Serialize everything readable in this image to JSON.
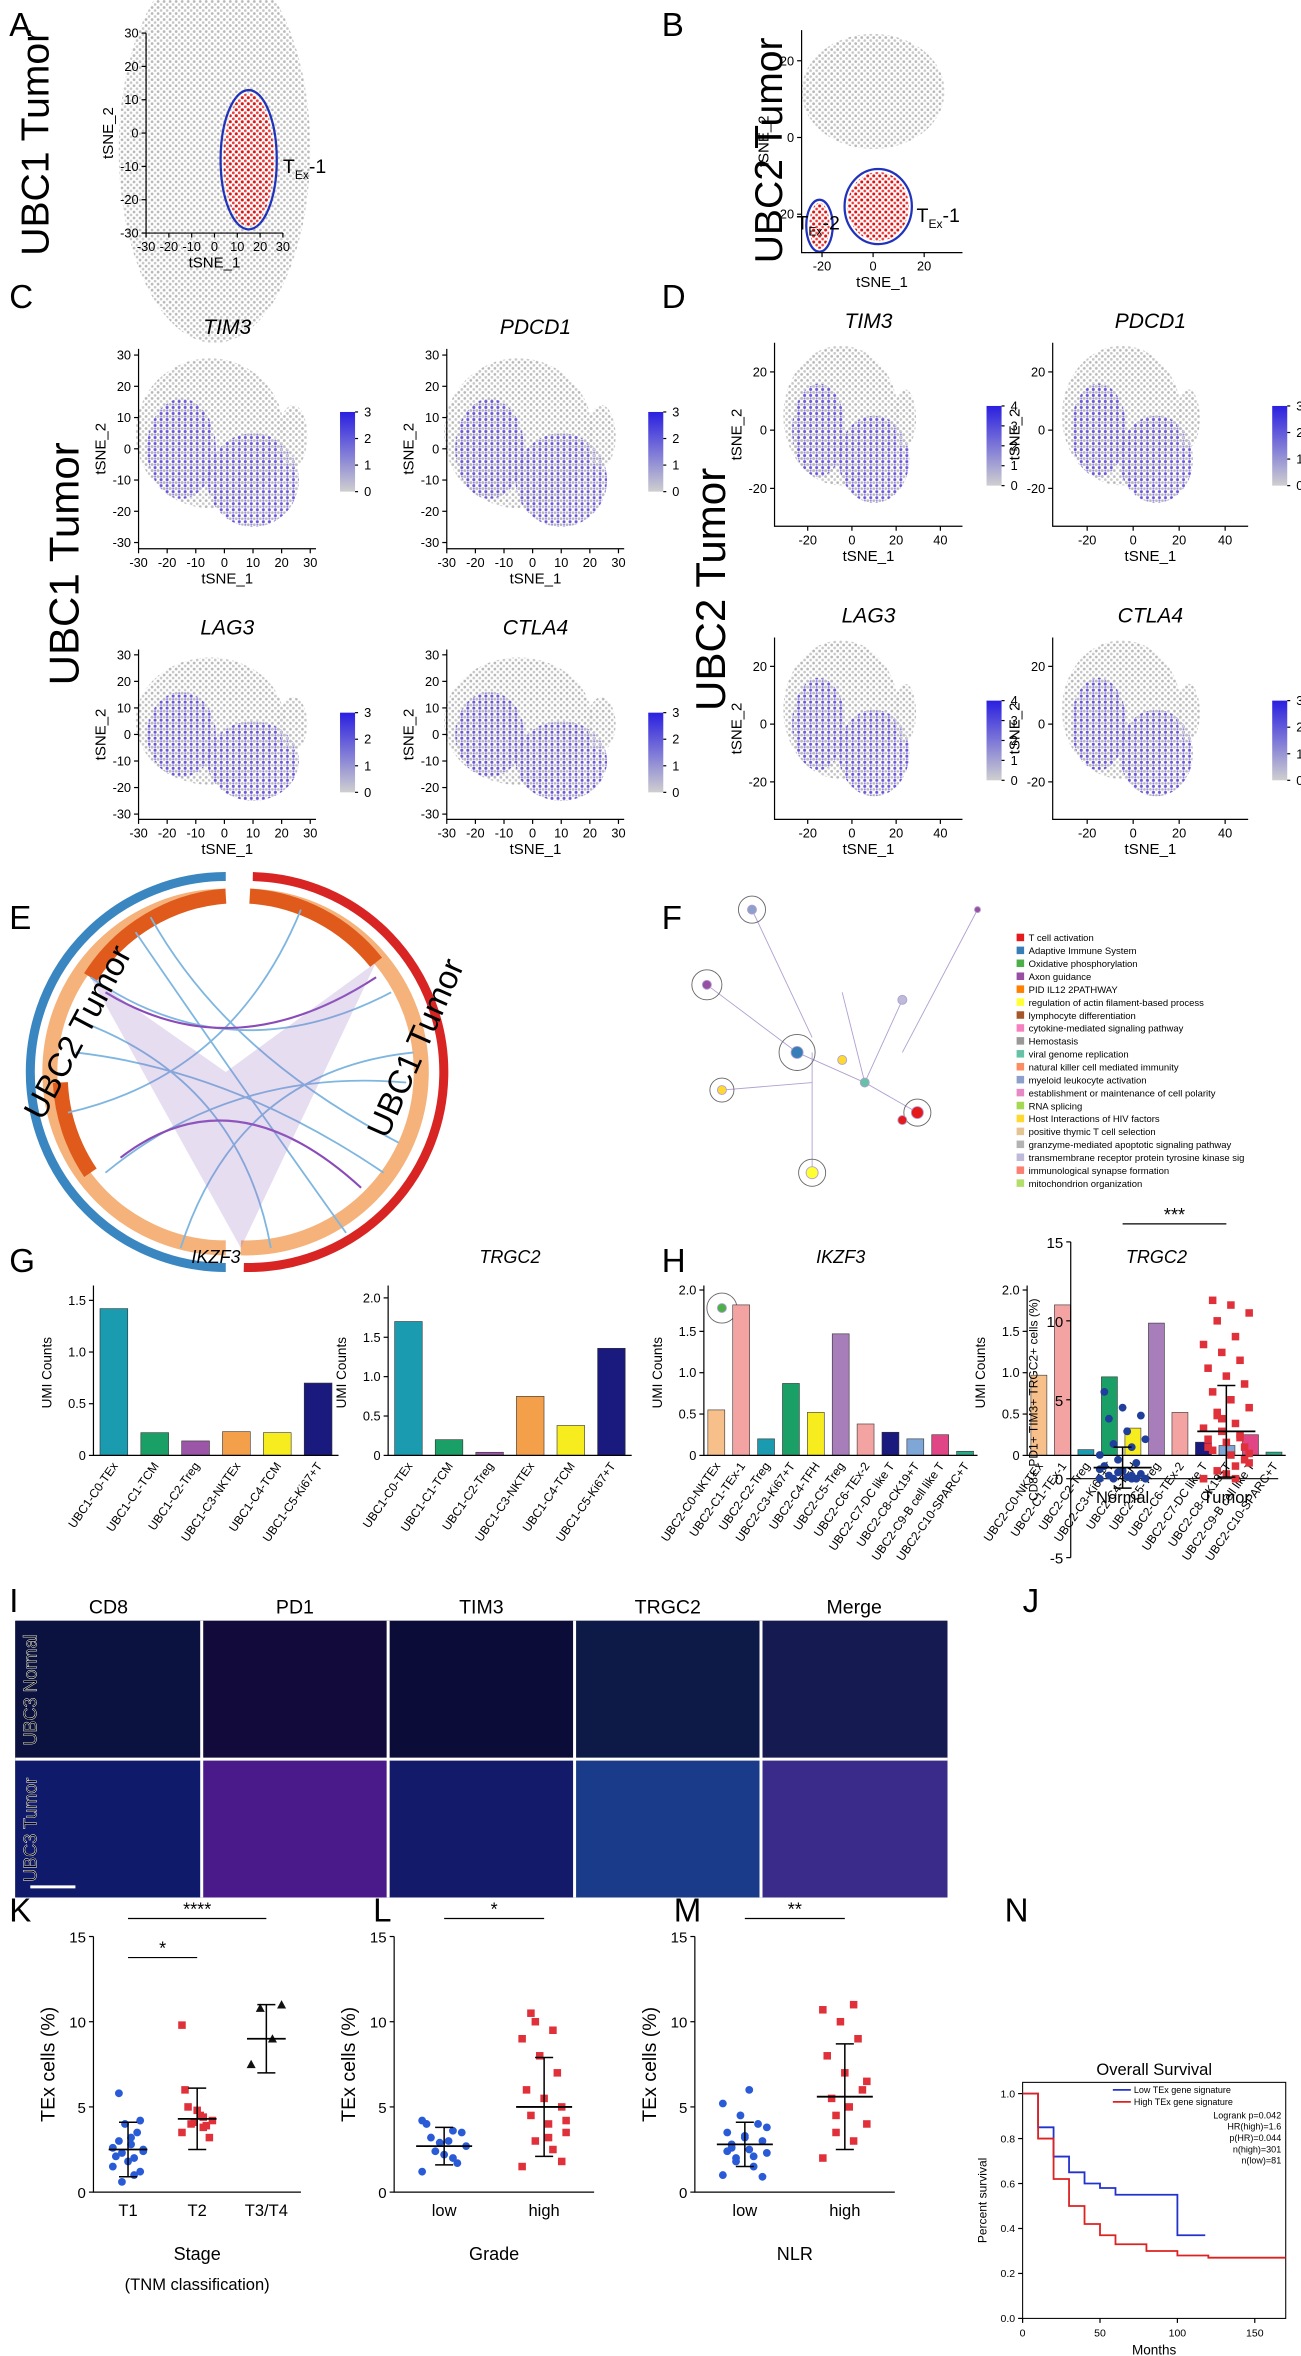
{
  "panel_letters": [
    "A",
    "B",
    "C",
    "D",
    "E",
    "F",
    "G",
    "H",
    "I",
    "J",
    "K",
    "L",
    "M",
    "N"
  ],
  "row_labels": [
    "UBC1 Tumor",
    "UBC2 Tumor",
    "UBC1 Tumor",
    "UBC2 Tumor",
    "UBC2 Tumor",
    "UBC1 Tumor"
  ],
  "tsne": [
    {
      "xlabel": "tSNE_1",
      "ylabel": "tSNE_2",
      "xlim": [
        -30,
        30
      ],
      "ylim": [
        -30,
        30
      ],
      "xticks": [
        -30,
        -20,
        -10,
        0,
        10,
        20,
        30
      ],
      "yticks": [
        -30,
        -20,
        -10,
        0,
        10,
        20,
        30
      ],
      "annotations": [
        {
          "main": "T",
          "sub": "Ex",
          "rest": "-1"
        }
      ]
    },
    {
      "xlabel": "tSNE_1",
      "ylabel": "tSNE_2",
      "xlim": [
        -28,
        35
      ],
      "ylim": [
        -30,
        28
      ],
      "xticks": [
        -20,
        0,
        20
      ],
      "yticks": [
        -20,
        0,
        20
      ],
      "annotations": [
        {
          "main": "T",
          "sub": "Ex",
          "rest": "-2"
        },
        {
          "main": "T",
          "sub": "Ex",
          "rest": "-1"
        }
      ]
    },
    {
      "title": "TIM3",
      "xlabel": "tSNE_1",
      "ylabel": "tSNE_2",
      "xlim": [
        -30,
        32
      ],
      "ylim": [
        -32,
        32
      ],
      "xticks": [
        -30,
        -20,
        -10,
        0,
        10,
        20,
        30
      ],
      "yticks": [
        -30,
        -20,
        -10,
        0,
        10,
        20,
        30
      ],
      "colorbar_ticks": [
        0,
        1,
        2,
        3
      ]
    },
    {
      "title": "PDCD1",
      "xlabel": "tSNE_1",
      "ylabel": "tSNE_2",
      "xlim": [
        -30,
        32
      ],
      "ylim": [
        -32,
        32
      ],
      "xticks": [
        -30,
        -20,
        -10,
        0,
        10,
        20,
        30
      ],
      "yticks": [
        -30,
        -20,
        -10,
        0,
        10,
        20,
        30
      ],
      "colorbar_ticks": [
        0,
        1,
        2,
        3
      ]
    },
    {
      "title": "LAG3",
      "xlabel": "tSNE_1",
      "ylabel": "tSNE_2",
      "xlim": [
        -30,
        32
      ],
      "ylim": [
        -32,
        32
      ],
      "xticks": [
        -30,
        -20,
        -10,
        0,
        10,
        20,
        30
      ],
      "yticks": [
        -30,
        -20,
        -10,
        0,
        10,
        20,
        30
      ],
      "colorbar_ticks": [
        0,
        1,
        2,
        3
      ]
    },
    {
      "title": "CTLA4",
      "xlabel": "tSNE_1",
      "ylabel": "tSNE_2",
      "xlim": [
        -30,
        32
      ],
      "ylim": [
        -32,
        32
      ],
      "xticks": [
        -30,
        -20,
        -10,
        0,
        10,
        20,
        30
      ],
      "yticks": [
        -30,
        -20,
        -10,
        0,
        10,
        20,
        30
      ],
      "colorbar_ticks": [
        0,
        1,
        2,
        3
      ]
    },
    {
      "title": "TIM3",
      "xlabel": "tSNE_1",
      "ylabel": "tSNE_2",
      "xlim": [
        -35,
        50
      ],
      "ylim": [
        -33,
        30
      ],
      "xticks": [
        -20,
        0,
        20,
        40
      ],
      "yticks": [
        -20,
        0,
        20
      ],
      "colorbar_ticks": [
        0,
        1,
        2,
        3,
        4
      ]
    },
    {
      "title": "PDCD1",
      "xlabel": "tSNE_1",
      "ylabel": "tSNE_2",
      "xlim": [
        -35,
        50
      ],
      "ylim": [
        -33,
        30
      ],
      "xticks": [
        -20,
        0,
        20,
        40
      ],
      "yticks": [
        -20,
        0,
        20
      ],
      "colorbar_ticks": [
        0,
        1,
        2,
        3
      ]
    },
    {
      "title": "LAG3",
      "xlabel": "tSNE_1",
      "ylabel": "tSNE_2",
      "xlim": [
        -35,
        50
      ],
      "ylim": [
        -33,
        30
      ],
      "xticks": [
        -20,
        0,
        20,
        40
      ],
      "yticks": [
        -20,
        0,
        20
      ],
      "colorbar_ticks": [
        0,
        1,
        2,
        3,
        4
      ]
    },
    {
      "title": "CTLA4",
      "xlabel": "tSNE_1",
      "ylabel": "tSNE_2",
      "xlim": [
        -35,
        50
      ],
      "ylim": [
        -33,
        30
      ],
      "xticks": [
        -20,
        0,
        20,
        40
      ],
      "yticks": [
        -20,
        0,
        20
      ],
      "colorbar_ticks": [
        0,
        1,
        2,
        3
      ]
    }
  ],
  "network_legend": [
    {
      "name": "T cell activation",
      "color": "#e41a1c"
    },
    {
      "name": "Adaptive Immune System",
      "color": "#377eb8"
    },
    {
      "name": "Oxidative phosphorylation",
      "color": "#4daf4a"
    },
    {
      "name": "Axon guidance",
      "color": "#984ea3"
    },
    {
      "name": "PID IL12 2PATHWAY",
      "color": "#ff7f00"
    },
    {
      "name": "regulation of actin filament-based process",
      "color": "#ffff33"
    },
    {
      "name": "lymphocyte differentiation",
      "color": "#a65628"
    },
    {
      "name": "cytokine-mediated signaling pathway",
      "color": "#f781bf"
    },
    {
      "name": "Hemostasis",
      "color": "#999999"
    },
    {
      "name": "viral genome replication",
      "color": "#66c2a5"
    },
    {
      "name": "natural killer cell mediated immunity",
      "color": "#fc8d62"
    },
    {
      "name": "myeloid leukocyte activation",
      "color": "#8da0cb"
    },
    {
      "name": "establishment or maintenance of cell polarity",
      "color": "#e78ac3"
    },
    {
      "name": "RNA splicing",
      "color": "#a6d854"
    },
    {
      "name": "Host Interactions of HIV factors",
      "color": "#ffd92f"
    },
    {
      "name": "positive thymic T cell selection",
      "color": "#e5c494"
    },
    {
      "name": "granzyme-mediated apoptotic signaling pathway",
      "color": "#b3b3b3"
    },
    {
      "name": "transmembrane receptor protein tyrosine kinase sig",
      "color": "#bebada"
    },
    {
      "name": "immunological synapse formation",
      "color": "#fb8072"
    },
    {
      "name": "mitochondrion organization",
      "color": "#b3de69"
    }
  ],
  "bar_charts": [
    {
      "title": "IKZF3",
      "ylabel": "UMI Counts",
      "ylim": [
        0,
        1.6
      ],
      "yticks": [
        0,
        0.5,
        {
          "value": 1,
          "label": "1.0"
        },
        1.5
      ],
      "categories": [
        "UBC1-C0-TEx",
        "UBC1-C1-TCM",
        "UBC1-C2-Treg",
        "UBC1-C3-NKTEx",
        "UBC1-C4-TCM",
        "UBC1-C5-Ki67+T"
      ],
      "values": [
        1.42,
        0.22,
        0.14,
        0.23,
        0.22,
        0.7
      ],
      "colors": [
        "#1a9bb0",
        "#1aa067",
        "#9b56a8",
        "#f4a04b",
        "#f7ec1e",
        "#1a1a7e"
      ]
    },
    {
      "title": "TRGC2",
      "ylabel": "UMI Counts",
      "ylim": [
        0,
        2.1
      ],
      "yticks": [
        0,
        0.5,
        {
          "value": 1,
          "label": "1.0"
        },
        1.5,
        {
          "value": 2,
          "label": "2.0"
        }
      ],
      "categories": [
        "UBC1-C0-TEx",
        "UBC1-C1-TCM",
        "UBC1-C2-Treg",
        "UBC1-C3-NKTEx",
        "UBC1-C4-TCM",
        "UBC1-C5-Ki67+T"
      ],
      "values": [
        1.7,
        0.2,
        0.04,
        0.75,
        0.38,
        1.36
      ],
      "colors": [
        "#1a9bb0",
        "#1aa067",
        "#9b56a8",
        "#f4a04b",
        "#f7ec1e",
        "#1a1a7e"
      ]
    },
    {
      "title": "IKZF3",
      "ylabel": "UMI Counts",
      "ylim": [
        0,
        2
      ],
      "yticks": [
        0,
        0.5,
        {
          "value": 1,
          "label": "1.0"
        },
        1.5,
        {
          "value": 2,
          "label": "2.0"
        }
      ],
      "categories": [
        "UBC2-C0-NKTEx",
        "UBC2-C1-TEx-1",
        "UBC2-C2-Treg",
        "UBC2-C3-Ki67+T",
        "UBC2-C4-TFH",
        "UBC2-C5-Treg",
        "UBC2-C6-TEx-2",
        "UBC2-C7-DC like T",
        "UBC2-C8-CK19+T",
        "UBC2-C9-B cell like T",
        "UBC2-C10-SPARC+T"
      ],
      "values": [
        0.55,
        1.82,
        0.2,
        0.87,
        0.52,
        1.47,
        0.38,
        0.28,
        0.2,
        0.25,
        0.05
      ],
      "colors": [
        "#f7c08a",
        "#f4a3a3",
        "#1a9bb0",
        "#1aa067",
        "#f7ec1e",
        "#a77dba",
        "#f4a3a3",
        "#1a1a7e",
        "#7ea6d6",
        "#e04585",
        "#2aaa8a"
      ]
    },
    {
      "title": "TRGC2",
      "ylabel": "UMI Counts",
      "ylim": [
        0,
        2
      ],
      "yticks": [
        0,
        0.5,
        {
          "value": 1,
          "label": "1.0"
        },
        1.5,
        {
          "value": 2,
          "label": "2.0"
        }
      ],
      "categories": [
        "UBC2-C0-NKTEx",
        "UBC2-C1-TEx-1",
        "UBC2-C2-Treg",
        "UBC2-C3-Ki67+T",
        "UBC2-C4-TFH",
        "UBC2-C5-Treg",
        "UBC2-C6-TEx-2",
        "UBC2-C7-DC like T",
        "UBC2-C8-CK19+T",
        "UBC2-C9-B cell like T",
        "UBC2-C10-SPARC+T"
      ],
      "values": [
        0.97,
        1.82,
        0.07,
        0.95,
        0.33,
        1.6,
        0.52,
        0.16,
        0.12,
        0.25,
        0.04
      ],
      "colors": [
        "#f7c08a",
        "#f4a3a3",
        "#1a9bb0",
        "#1aa067",
        "#f7ec1e",
        "#a77dba",
        "#f4a3a3",
        "#1a1a7e",
        "#7ea6d6",
        "#e04585",
        "#2aaa8a"
      ]
    }
  ],
  "imaging": {
    "channels": [
      {
        "name": "CD8",
        "color": "#7ee03a"
      },
      {
        "name": "PD1",
        "color": "#c43ad0"
      },
      {
        "name": "TIM3",
        "color": "#e02a2a"
      },
      {
        "name": "TRGC2",
        "color": "#3ad6e0"
      },
      {
        "name": "Merge",
        "color": "#000000"
      }
    ],
    "rows": [
      "UBC3 Normal",
      "UBC3 Tumor"
    ]
  },
  "strip_charts": [
    {
      "ylabel": "CD8+ PD1+ TIM3+ TRGC2+ cells (%)",
      "ylim": [
        -5,
        15
      ],
      "yticks": [
        -5,
        0,
        5,
        10,
        15
      ],
      "categories": [
        "Normal",
        "Tumor"
      ],
      "colors": [
        "#1f3f9a",
        "#e0303a"
      ],
      "markers": [
        "circle",
        "square"
      ],
      "points": [
        [
          0,
          0,
          0,
          0,
          0.1,
          0.2,
          0.3,
          0.5,
          0.8,
          1,
          1.2,
          1.5,
          2,
          2.2,
          2.5,
          3,
          3.8,
          4,
          4.5,
          5.5,
          0,
          0.4,
          0.6,
          0.2
        ],
        [
          0,
          0,
          0.5,
          1,
          1.5,
          1.8,
          2,
          2.3,
          2.5,
          2.8,
          3,
          3.2,
          3.5,
          4,
          4.5,
          5,
          5.5,
          6,
          6.5,
          7,
          7.5,
          8,
          8.5,
          9,
          10,
          10.5,
          11,
          11.3,
          1.2,
          0.3,
          2,
          2.6,
          3.8,
          0,
          0.8,
          4.2,
          1.6
        ]
      ],
      "means": [
        0.7,
        3
      ],
      "sd": [
        1.3,
        2.9
      ],
      "significance": [
        {
          "label": "***",
          "between": [
            "Normal",
            "Tumor"
          ]
        }
      ]
    },
    {
      "ylabel": "TEx cells (%)",
      "xlabel": "Stage",
      "note": "(TNM classification)",
      "ylim": [
        0,
        15
      ],
      "yticks": [
        0,
        5,
        10,
        15
      ],
      "categories": [
        "T1",
        "T2",
        "T3/T4"
      ],
      "colors": [
        "#2a5bd7",
        "#e0303a",
        "#111111"
      ],
      "markers": [
        "circle",
        "square",
        "triangle"
      ],
      "points": [
        [
          1.5,
          2,
          2.3,
          2.5,
          2.8,
          3,
          1.2,
          1.8,
          2.1,
          3.5,
          4,
          2.6,
          1,
          0.6,
          2.4,
          3.2,
          5.8,
          4.2
        ],
        [
          3.5,
          3.8,
          4,
          4.2,
          4.5,
          5,
          3.2,
          4.8,
          6,
          3.9,
          4.1,
          9.8,
          4.4
        ],
        [
          7.5,
          9,
          10.8,
          11
        ]
      ],
      "means": [
        2.5,
        4.3,
        9
      ],
      "sd": [
        1.6,
        1.8,
        2
      ],
      "significance": [
        {
          "label": "*",
          "between": [
            "T1",
            "T2"
          ]
        },
        {
          "label": "****",
          "between": [
            "T1",
            "T3/T4"
          ]
        }
      ]
    },
    {
      "ylabel": "TEx cells (%)",
      "xlabel": "Grade",
      "ylim": [
        0,
        15
      ],
      "yticks": [
        0,
        5,
        10,
        15
      ],
      "categories": [
        "low",
        "high"
      ],
      "colors": [
        "#2a5bd7",
        "#e0303a"
      ],
      "markers": [
        "circle",
        "square"
      ],
      "points": [
        [
          1.2,
          2,
          2.4,
          2.7,
          3,
          3.2,
          3.5,
          2.2,
          4,
          1.7,
          2.9,
          4.2,
          3.6
        ],
        [
          1.5,
          2.5,
          3,
          3.5,
          4,
          4.5,
          5,
          5.5,
          6,
          7,
          8,
          9,
          9.5,
          10,
          4.2,
          3.2,
          10.5,
          1.8
        ]
      ],
      "means": [
        2.7,
        5
      ],
      "sd": [
        1.1,
        2.9
      ],
      "significance": [
        {
          "label": "*",
          "between": [
            "low",
            "high"
          ]
        }
      ]
    },
    {
      "ylabel": "TEx cells (%)",
      "xlabel": "NLR",
      "ylim": [
        0,
        15
      ],
      "yticks": [
        0,
        5,
        10,
        15
      ],
      "categories": [
        "low",
        "high"
      ],
      "colors": [
        "#2a5bd7",
        "#e0303a"
      ],
      "markers": [
        "circle",
        "square"
      ],
      "points": [
        [
          1,
          1.5,
          2,
          2.3,
          2.5,
          2.8,
          3,
          3.2,
          3.5,
          4,
          4.5,
          5.2,
          2.1,
          1.8,
          3.8,
          6,
          2.6,
          0.9,
          3.3,
          2.4
        ],
        [
          2,
          3,
          3.5,
          4,
          5,
          5.5,
          6,
          7,
          8,
          9,
          10,
          10.7,
          11,
          4.5,
          6.5
        ]
      ],
      "means": [
        2.8,
        5.6
      ],
      "sd": [
        1.3,
        3.1
      ],
      "significance": [
        {
          "label": "**",
          "between": [
            "low",
            "high"
          ]
        }
      ]
    }
  ],
  "survival": {
    "title": "Overall Survival",
    "xlabel": "Months",
    "ylabel": "Percent survival",
    "xlim": [
      0,
      170
    ],
    "ylim": [
      0,
      1.05
    ],
    "xticks": [
      0,
      50,
      100,
      150
    ],
    "yticks": [
      {
        "value": 0,
        "label": "0.0"
      },
      0.2,
      0.4,
      0.6,
      0.8,
      {
        "value": 1,
        "label": "1.0"
      }
    ],
    "series": [
      {
        "name": "Low TEx gene signature",
        "color": "#2233cc",
        "x": [
          0,
          10,
          20,
          30,
          40,
          50,
          60,
          70,
          100,
          100,
          118
        ],
        "y": [
          1,
          0.85,
          0.72,
          0.65,
          0.6,
          0.58,
          0.55,
          0.55,
          0.55,
          0.37,
          0.37
        ]
      },
      {
        "name": "High TEx gene signature",
        "color": "#dd2222",
        "x": [
          0,
          10,
          20,
          30,
          40,
          50,
          60,
          80,
          100,
          120,
          170
        ],
        "y": [
          1,
          0.8,
          0.62,
          0.5,
          0.42,
          0.37,
          0.33,
          0.3,
          0.28,
          0.27,
          0.27
        ]
      }
    ],
    "stats": [
      "Logrank p=0.042",
      "HR(high)=1.6",
      "p(HR)=0.044",
      "n(high)=301",
      "n(low)=81"
    ]
  }
}
